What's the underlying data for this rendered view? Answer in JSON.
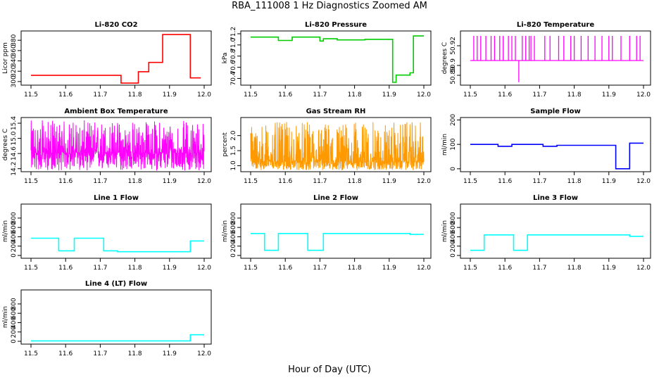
{
  "figure": {
    "title": "RBA_111008  1 Hz Diagnostics Zoomed AM",
    "xlabel": "Hour of Day (UTC)"
  },
  "chart_data": [
    {
      "type": "line",
      "title": "Li-820 CO2",
      "ylabel": "Licor ppm",
      "color": "#ff0000",
      "xlim": [
        11.5,
        12.0
      ],
      "ylim": [
        293,
        398
      ],
      "xticks": [
        "11.5",
        "11.6",
        "11.7",
        "11.8",
        "11.9",
        "12.0"
      ],
      "xtick_values": [
        11.5,
        11.6,
        11.7,
        11.8,
        11.9,
        12.0
      ],
      "yticks": [
        "300",
        "320",
        "340",
        "360",
        "380"
      ],
      "ytick_values": [
        300,
        320,
        340,
        360,
        380
      ],
      "series": [
        {
          "x": [
            11.5,
            11.76,
            11.76,
            11.81,
            11.81,
            11.84,
            11.84,
            11.88,
            11.88,
            11.96,
            11.96,
            11.99
          ],
          "y": [
            312,
            312,
            297,
            297,
            319,
            319,
            337,
            337,
            391,
            391,
            307,
            307
          ]
        }
      ]
    },
    {
      "type": "line",
      "title": "Li-820 Pressure",
      "ylabel": "kPa",
      "color": "#00cc00",
      "xlim": [
        11.5,
        12.0
      ],
      "ylim": [
        70.28,
        71.25
      ],
      "xticks": [
        "11.5",
        "11.6",
        "11.7",
        "11.8",
        "11.9",
        "12.0"
      ],
      "xtick_values": [
        11.5,
        11.6,
        11.7,
        11.8,
        11.9,
        12.0
      ],
      "yticks": [
        "70.4",
        "70.6",
        "70.8",
        "71.0",
        "71.2"
      ],
      "ytick_values": [
        70.4,
        70.6,
        70.8,
        71.0,
        71.2
      ],
      "series": [
        {
          "x": [
            11.5,
            11.58,
            11.58,
            11.62,
            11.62,
            11.7,
            11.7,
            11.71,
            11.71,
            11.75,
            11.75,
            11.83,
            11.83,
            11.91,
            11.91,
            11.92,
            11.92,
            11.96,
            11.96,
            11.97,
            11.97,
            12.0
          ],
          "y": [
            71.14,
            71.14,
            71.08,
            71.08,
            71.14,
            71.14,
            71.07,
            71.07,
            71.11,
            71.11,
            71.09,
            71.09,
            71.1,
            71.1,
            70.33,
            70.33,
            70.46,
            70.46,
            70.5,
            70.5,
            71.16,
            71.16
          ]
        }
      ]
    },
    {
      "type": "line",
      "title": "Li-820 Temperature",
      "ylabel": "degrees C",
      "color": "#ff00ff",
      "xlim": [
        11.5,
        12.0
      ],
      "ylim": [
        50.88,
        50.935
      ],
      "xticks": [
        "11.5",
        "11.6",
        "11.7",
        "11.8",
        "11.9",
        "12.0"
      ],
      "xtick_values": [
        11.5,
        11.6,
        11.7,
        11.8,
        11.9,
        12.0
      ],
      "yticks": [
        "50.89",
        "50.9",
        "50.92"
      ],
      "ytick_values": [
        50.89,
        50.9,
        50.92
      ],
      "series": [
        {
          "baseline": 50.905,
          "high": 50.93,
          "dip_x": 11.64,
          "dip_y": 50.883,
          "spikes_x": [
            11.51,
            11.52,
            11.53,
            11.545,
            11.56,
            11.57,
            11.585,
            11.595,
            11.61,
            11.62,
            11.63,
            11.65,
            11.66,
            11.67,
            11.675,
            11.685,
            11.715,
            11.73,
            11.755,
            11.77,
            11.79,
            11.8,
            11.82,
            11.84,
            11.86,
            11.88,
            11.9,
            11.91,
            11.935,
            11.96,
            11.98,
            11.99
          ]
        }
      ]
    },
    {
      "type": "line",
      "title": "Ambient Box Temperature",
      "ylabel": "degrees C",
      "color": "#ff00ff",
      "xlim": [
        11.5,
        12.0
      ],
      "ylim": [
        14.12,
        15.55
      ],
      "xticks": [
        "11.5",
        "11.6",
        "11.7",
        "11.8",
        "11.9",
        "12.0"
      ],
      "xtick_values": [
        11.5,
        11.6,
        11.7,
        11.8,
        11.9,
        12.0
      ],
      "yticks": [
        "14.2",
        "14.6",
        "15.0",
        "15.4"
      ],
      "ytick_values": [
        14.2,
        14.6,
        15.0,
        15.4
      ],
      "series": [
        {
          "center": 14.62,
          "min": 14.15,
          "max": 15.48
        }
      ]
    },
    {
      "type": "line",
      "title": "Gas Stream RH",
      "ylabel": "percent",
      "color": "#ff9900",
      "xlim": [
        11.5,
        12.0
      ],
      "ylim": [
        0.8,
        2.6
      ],
      "xticks": [
        "11.5",
        "11.6",
        "11.7",
        "11.8",
        "11.9",
        "12.0"
      ],
      "xtick_values": [
        11.5,
        11.6,
        11.7,
        11.8,
        11.9,
        12.0
      ],
      "yticks": [
        "1.0",
        "1.5",
        "2.0"
      ],
      "ytick_values": [
        1.0,
        1.5,
        2.0
      ],
      "series": [
        {
          "center": 1.15,
          "min": 0.85,
          "max": 2.45
        }
      ]
    },
    {
      "type": "line",
      "title": "Sample Flow",
      "ylabel": "ml/min",
      "color": "#0000ff",
      "xlim": [
        11.5,
        12.0
      ],
      "ylim": [
        -12,
        210
      ],
      "xticks": [
        "11.5",
        "11.6",
        "11.7",
        "11.8",
        "11.9",
        "12.0"
      ],
      "xtick_values": [
        11.5,
        11.6,
        11.7,
        11.8,
        11.9,
        12.0
      ],
      "yticks": [
        "0",
        "100",
        "200"
      ],
      "ytick_values": [
        0,
        100,
        200
      ],
      "series": [
        {
          "x": [
            11.5,
            11.58,
            11.58,
            11.62,
            11.62,
            11.71,
            11.71,
            11.75,
            11.75,
            11.92,
            11.92,
            11.96,
            11.96,
            12.0
          ],
          "y": [
            100,
            100,
            92,
            92,
            100,
            100,
            92,
            92,
            96,
            96,
            0,
            0,
            105,
            105
          ]
        }
      ]
    },
    {
      "type": "line",
      "title": "Line 1 Flow",
      "ylabel": "ml/min",
      "color": "#00ffff",
      "xlim": [
        11.5,
        12.0
      ],
      "ylim": [
        -60,
        1100
      ],
      "xticks": [
        "11.5",
        "11.6",
        "11.7",
        "11.8",
        "11.9",
        "12.0"
      ],
      "xtick_values": [
        11.5,
        11.6,
        11.7,
        11.8,
        11.9,
        12.0
      ],
      "yticks": [
        "0",
        "200",
        "400",
        "600",
        "800"
      ],
      "ytick_values": [
        0,
        200,
        400,
        600,
        800
      ],
      "series": [
        {
          "x": [
            11.5,
            11.58,
            11.58,
            11.625,
            11.625,
            11.71,
            11.71,
            11.75,
            11.75,
            11.96,
            11.96,
            12.0
          ],
          "y": [
            370,
            370,
            100,
            100,
            370,
            370,
            100,
            100,
            80,
            80,
            310,
            310
          ]
        }
      ]
    },
    {
      "type": "line",
      "title": "Line 2 Flow",
      "ylabel": "ml/min",
      "color": "#00ffff",
      "xlim": [
        11.5,
        12.0
      ],
      "ylim": [
        -60,
        1100
      ],
      "xticks": [
        "11.5",
        "11.6",
        "11.7",
        "11.8",
        "11.9",
        "12.0"
      ],
      "xtick_values": [
        11.5,
        11.6,
        11.7,
        11.8,
        11.9,
        12.0
      ],
      "yticks": [
        "0",
        "200",
        "400",
        "600",
        "800"
      ],
      "ytick_values": [
        0,
        200,
        400,
        600,
        800
      ],
      "series": [
        {
          "x": [
            11.5,
            11.54,
            11.54,
            11.58,
            11.58,
            11.665,
            11.665,
            11.71,
            11.71,
            11.96,
            11.96,
            12.0
          ],
          "y": [
            470,
            470,
            110,
            110,
            470,
            470,
            110,
            110,
            470,
            470,
            450,
            450
          ]
        }
      ]
    },
    {
      "type": "line",
      "title": "Line 3 Flow",
      "ylabel": "ml/min",
      "color": "#00ffff",
      "xlim": [
        11.5,
        12.0
      ],
      "ylim": [
        -60,
        1100
      ],
      "xticks": [
        "11.5",
        "11.6",
        "11.7",
        "11.8",
        "11.9",
        "12.0"
      ],
      "xtick_values": [
        11.5,
        11.6,
        11.7,
        11.8,
        11.9,
        12.0
      ],
      "yticks": [
        "0",
        "200",
        "400",
        "600",
        "800"
      ],
      "ytick_values": [
        0,
        200,
        400,
        600,
        800
      ],
      "series": [
        {
          "x": [
            11.5,
            11.54,
            11.54,
            11.625,
            11.625,
            11.665,
            11.665,
            11.96,
            11.96,
            12.0
          ],
          "y": [
            110,
            110,
            440,
            440,
            110,
            110,
            440,
            440,
            410,
            410
          ]
        }
      ]
    },
    {
      "type": "line",
      "title": "Line 4 (LT) Flow",
      "ylabel": "ml/min",
      "color": "#00ffff",
      "xlim": [
        11.5,
        12.0
      ],
      "ylim": [
        -60,
        1100
      ],
      "xticks": [
        "11.5",
        "11.6",
        "11.7",
        "11.8",
        "11.9",
        "12.0"
      ],
      "xtick_values": [
        11.5,
        11.6,
        11.7,
        11.8,
        11.9,
        12.0
      ],
      "yticks": [
        "0",
        "200",
        "400",
        "600",
        "800"
      ],
      "ytick_values": [
        0,
        200,
        400,
        600,
        800
      ],
      "series": [
        {
          "x": [
            11.5,
            11.96,
            11.96,
            12.0
          ],
          "y": [
            10,
            10,
            140,
            140
          ]
        }
      ]
    }
  ]
}
